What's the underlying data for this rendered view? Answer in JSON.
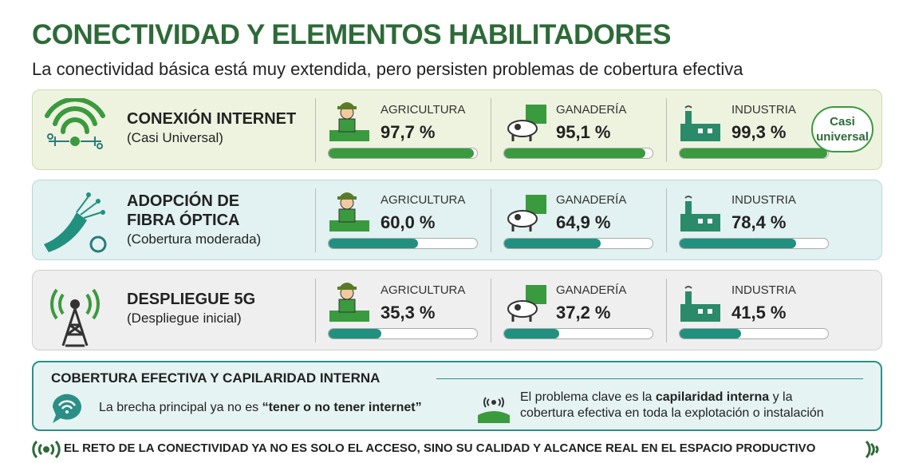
{
  "header": {
    "title": "CONECTIVIDAD Y ELEMENTOS HABILITADORES",
    "subtitle": "La conectividad básica está muy extendida, pero persisten problemas de cobertura efectiva"
  },
  "xlim": [
    0,
    100
  ],
  "rows": [
    {
      "title": [
        "CONEXIÓN INTERNET"
      ],
      "subtitle": "(Casi Universal)",
      "color": "#3a9a3e",
      "callout": [
        "Casi",
        "universal"
      ],
      "sectors": [
        {
          "name": "AGRICULTURA",
          "value": 97.7,
          "label": "97,7 %"
        },
        {
          "name": "GANADERÍA",
          "value": 95.1,
          "label": "95,1 %"
        },
        {
          "name": "INDUSTRIA",
          "value": 99.3,
          "label": "99,3 %"
        }
      ]
    },
    {
      "title": [
        "ADOPCIÓN DE",
        "FIBRA ÓPTICA"
      ],
      "subtitle": "(Cobertura moderada)",
      "color": "#21907f",
      "sectors": [
        {
          "name": "AGRICULTURA",
          "value": 60.0,
          "label": "60,0 %"
        },
        {
          "name": "GANADERÍA",
          "value": 64.9,
          "label": "64,9 %"
        },
        {
          "name": "INDUSTRIA",
          "value": 78.4,
          "label": "78,4 %"
        }
      ]
    },
    {
      "title": [
        "DESPLIEGUE 5G"
      ],
      "subtitle": "(Despliegue inicial)",
      "color": "#21907f",
      "sectors": [
        {
          "name": "AGRICULTURA",
          "value": 35.3,
          "label": "35,3 %"
        },
        {
          "name": "GANADERÍA",
          "value": 37.2,
          "label": "37,2 %"
        },
        {
          "name": "INDUSTRIA",
          "value": 41.5,
          "label": "41,5 %"
        }
      ]
    }
  ],
  "coverage": {
    "heading": "COBERTURA EFECTIVA Y CAPILARIDAD INTERNA",
    "left": [
      "La brecha principal ya no es ",
      "“tener o no tener internet”"
    ],
    "right": [
      [
        "El problema clave es la ",
        "capilaridad interna",
        " y la"
      ],
      [
        "cobertura efectiva en toda la explotación o instalación"
      ]
    ]
  },
  "footer": "EL RETO DE LA CONECTIVIDAD YA NO ES SOLO EL ACCESO, SINO SU CALIDAD Y ALCANCE REAL EN EL ESPACIO PRODUCTIVO"
}
